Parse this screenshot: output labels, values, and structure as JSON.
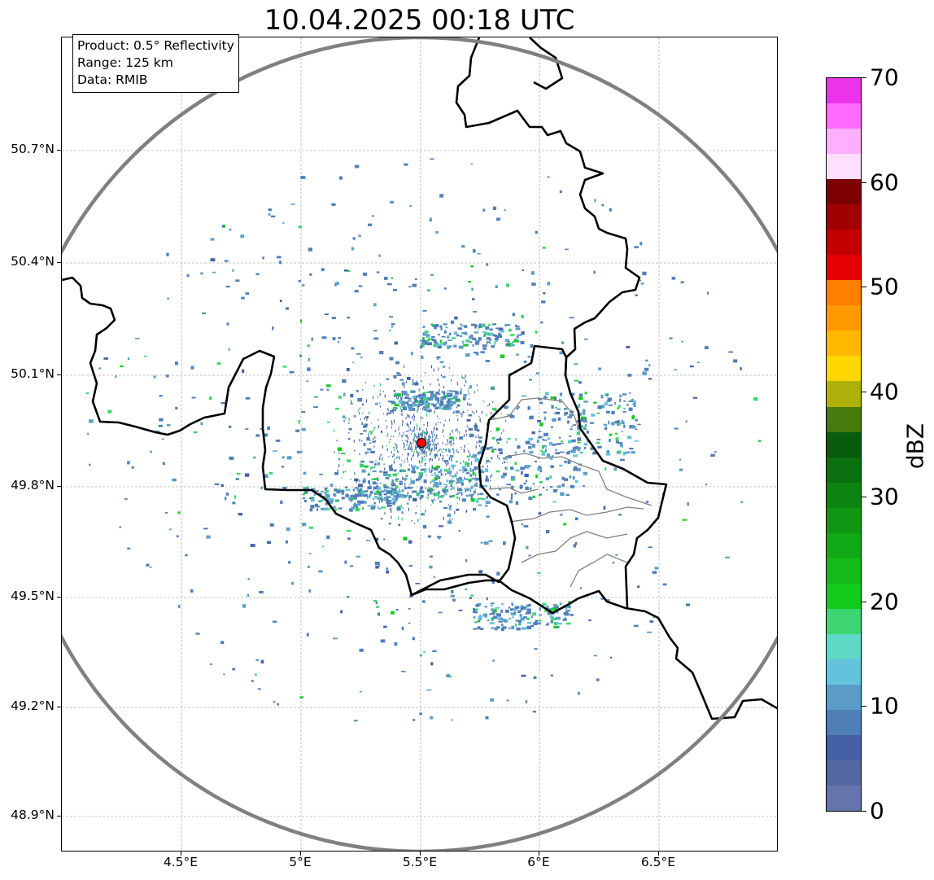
{
  "title": "10.04.2025 00:18 UTC",
  "info_box": {
    "product": "Product: 0.5° Reflectivity",
    "range": "Range: 125 km",
    "data": "Data: RMIB"
  },
  "latitude_labels": [
    "50.7°N",
    "50.4°N",
    "50.1°N",
    "49.8°N",
    "49.5°N",
    "49.2°N",
    "48.9°N"
  ],
  "longitude_labels": [
    "4.5°E",
    "5°E",
    "5.5°E",
    "6°E",
    "6.5°E"
  ],
  "colorbar": {
    "label": "dBZ",
    "ticks": [
      "0",
      "10",
      "20",
      "30",
      "40",
      "50",
      "60",
      "70"
    ],
    "colors": [
      "#6574aa",
      "#5567a0",
      "#4560a5",
      "#4f7fb6",
      "#5b9dc8",
      "#64c2dc",
      "#5fd8c5",
      "#3dd571",
      "#13cc1a",
      "#12bb18",
      "#11a815",
      "#0f9713",
      "#0c8412",
      "#0a7010",
      "#085c0c",
      "#477a0c",
      "#aeb10a",
      "#ffd600",
      "#ffb700",
      "#ff9900",
      "#ff7f00",
      "#e50000",
      "#c20000",
      "#a00000",
      "#7c0000",
      "#ffdfff",
      "#ffafff",
      "#ff6bff",
      "#ea33ea"
    ]
  },
  "map": {
    "radar_site_color": "#ff0000",
    "range_ring_color": "#808080",
    "border_color": "#000000",
    "subdivision_color": "#808080"
  }
}
